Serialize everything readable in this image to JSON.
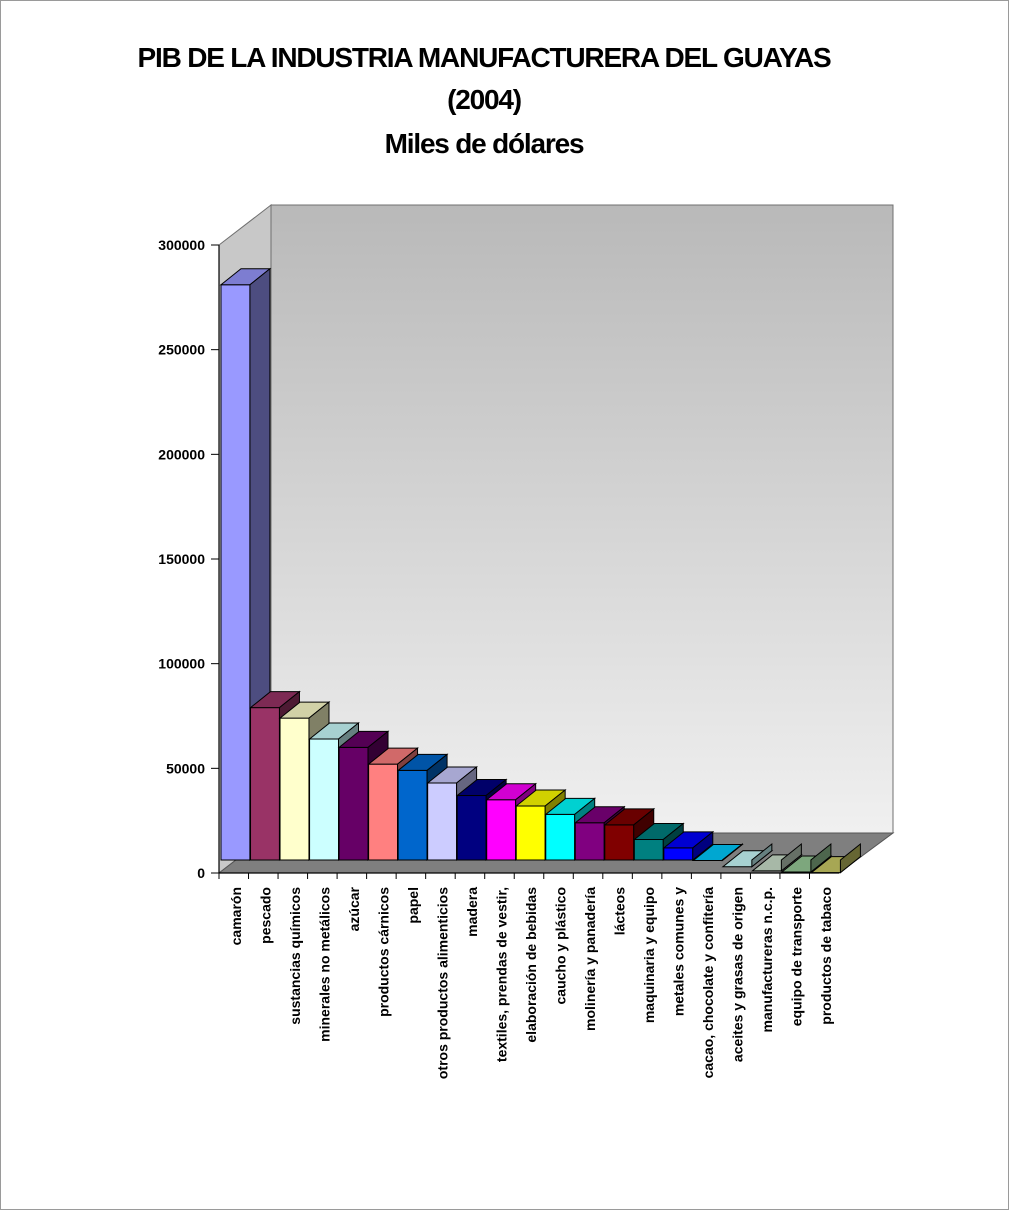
{
  "chart_data": {
    "type": "bar",
    "title_lines": [
      "PIB DE LA  INDUSTRIA MANUFACTURERA DEL GUAYAS",
      "(2004)",
      "Miles de dólares"
    ],
    "xlabel": "",
    "ylabel": "",
    "ylim": [
      0,
      300000
    ],
    "yticks": [
      "0",
      "50000",
      "100000",
      "150000",
      "200000",
      "250000",
      "300000"
    ],
    "grid": false,
    "legend": "none",
    "categories": [
      "camarón",
      "pescado",
      "sustancias químicos",
      "minerales no metálicos",
      "azúcar",
      "productos cárnicos",
      "papel",
      "otros productos alimenticios",
      "madera",
      "textiles, prendas de vestir,",
      "elaboración de bebidas",
      "caucho y plástico",
      "molinería y panadería",
      "lácteos",
      "maquinaria y equipo",
      "metales comunes y",
      "cacao, chocolate y confitería",
      "aceites y grasas de origen",
      "manufactureras n.c.p.",
      "equipo de transporte",
      "productos de tabaco"
    ],
    "values": [
      281000,
      79000,
      74000,
      64000,
      60000,
      52000,
      49000,
      43000,
      37000,
      35000,
      32000,
      28000,
      24000,
      23000,
      16000,
      12000,
      6000,
      3000,
      1000,
      500,
      200
    ],
    "colors": [
      "#9999ff",
      "#993366",
      "#ffffcc",
      "#ccffff",
      "#660066",
      "#ff8080",
      "#0066cc",
      "#ccccff",
      "#000080",
      "#ff00ff",
      "#ffff00",
      "#00ffff",
      "#800080",
      "#800000",
      "#008080",
      "#0000ff",
      "#00ccff",
      "#ccffff",
      "#cce0cc",
      "#99cc99",
      "#cccc66"
    ]
  }
}
